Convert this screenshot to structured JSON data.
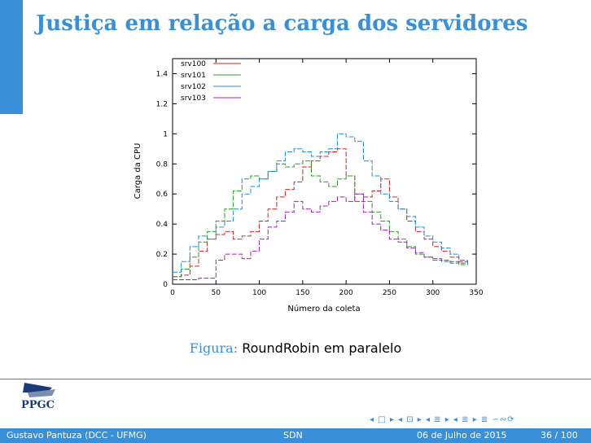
{
  "slide": {
    "title": "Justiça em relação a carga dos servidores",
    "caption_label": "Figura:",
    "caption_text": "RoundRobin em paralelo"
  },
  "footer": {
    "author": "Gustavo Pantuza (DCC - UFMG)",
    "section": "SDN",
    "date": "06 de Julho de 2015",
    "page": "36 / 100"
  },
  "logo": {
    "text": "PPGC"
  },
  "nav": {
    "symbols": "◂ □ ▸  ◂ ⊡ ▸  ◂ ≣ ▸  ◂ ≣ ▸   ≣   ∽∾⟳"
  },
  "colors": {
    "accent": "#3a8fd9",
    "srv100": "#d62020",
    "srv101": "#20a020",
    "srv102": "#1f8fd0",
    "srv103": "#a020c0"
  },
  "chart_data": {
    "type": "line",
    "title": "",
    "xlabel": "Número da coleta",
    "ylabel": "Carga da CPU",
    "xlim": [
      0,
      350
    ],
    "ylim": [
      0,
      1.5
    ],
    "xticks": [
      "0",
      "50",
      "100",
      "150",
      "200",
      "250",
      "300",
      "350"
    ],
    "yticks": [
      "0",
      "0.2",
      "0.4",
      "0.6",
      "0.8",
      "1",
      "1.2",
      "1.4"
    ],
    "legend_position": "top-left",
    "x": [
      0,
      10,
      20,
      30,
      40,
      50,
      60,
      70,
      80,
      90,
      100,
      110,
      120,
      130,
      140,
      150,
      160,
      170,
      180,
      190,
      200,
      210,
      220,
      230,
      240,
      250,
      260,
      270,
      280,
      290,
      300,
      310,
      320,
      330,
      340
    ],
    "series": [
      {
        "name": "srv100",
        "color": "#d62020",
        "values": [
          0.05,
          0.06,
          0.12,
          0.22,
          0.3,
          0.33,
          0.35,
          0.3,
          0.32,
          0.35,
          0.42,
          0.5,
          0.58,
          0.63,
          0.68,
          0.78,
          0.82,
          0.85,
          0.88,
          0.9,
          0.72,
          0.55,
          0.58,
          0.62,
          0.7,
          0.58,
          0.5,
          0.42,
          0.35,
          0.3,
          0.25,
          0.22,
          0.18,
          0.15,
          0.14
        ]
      },
      {
        "name": "srv101",
        "color": "#20a020",
        "values": [
          0.05,
          0.1,
          0.18,
          0.28,
          0.35,
          0.42,
          0.5,
          0.62,
          0.7,
          0.72,
          0.7,
          0.75,
          0.8,
          0.78,
          0.8,
          0.82,
          0.72,
          0.68,
          0.65,
          0.7,
          0.72,
          0.6,
          0.55,
          0.48,
          0.42,
          0.35,
          0.3,
          0.25,
          0.2,
          0.18,
          0.16,
          0.15,
          0.14,
          0.13,
          0.14
        ]
      },
      {
        "name": "srv102",
        "color": "#1f8fd0",
        "values": [
          0.08,
          0.15,
          0.25,
          0.32,
          0.3,
          0.38,
          0.42,
          0.5,
          0.6,
          0.65,
          0.7,
          0.75,
          0.82,
          0.88,
          0.9,
          0.88,
          0.85,
          0.88,
          0.9,
          1.0,
          0.98,
          0.95,
          0.82,
          0.72,
          0.6,
          0.55,
          0.5,
          0.45,
          0.38,
          0.32,
          0.28,
          0.24,
          0.2,
          0.16,
          0.14
        ]
      },
      {
        "name": "srv103",
        "color": "#a020c0",
        "values": [
          0.03,
          0.03,
          0.03,
          0.04,
          0.04,
          0.16,
          0.2,
          0.2,
          0.17,
          0.22,
          0.3,
          0.38,
          0.42,
          0.48,
          0.55,
          0.5,
          0.48,
          0.52,
          0.55,
          0.58,
          0.55,
          0.6,
          0.48,
          0.4,
          0.36,
          0.3,
          0.28,
          0.24,
          0.21,
          0.18,
          0.17,
          0.16,
          0.15,
          0.14,
          0.14
        ]
      }
    ]
  }
}
